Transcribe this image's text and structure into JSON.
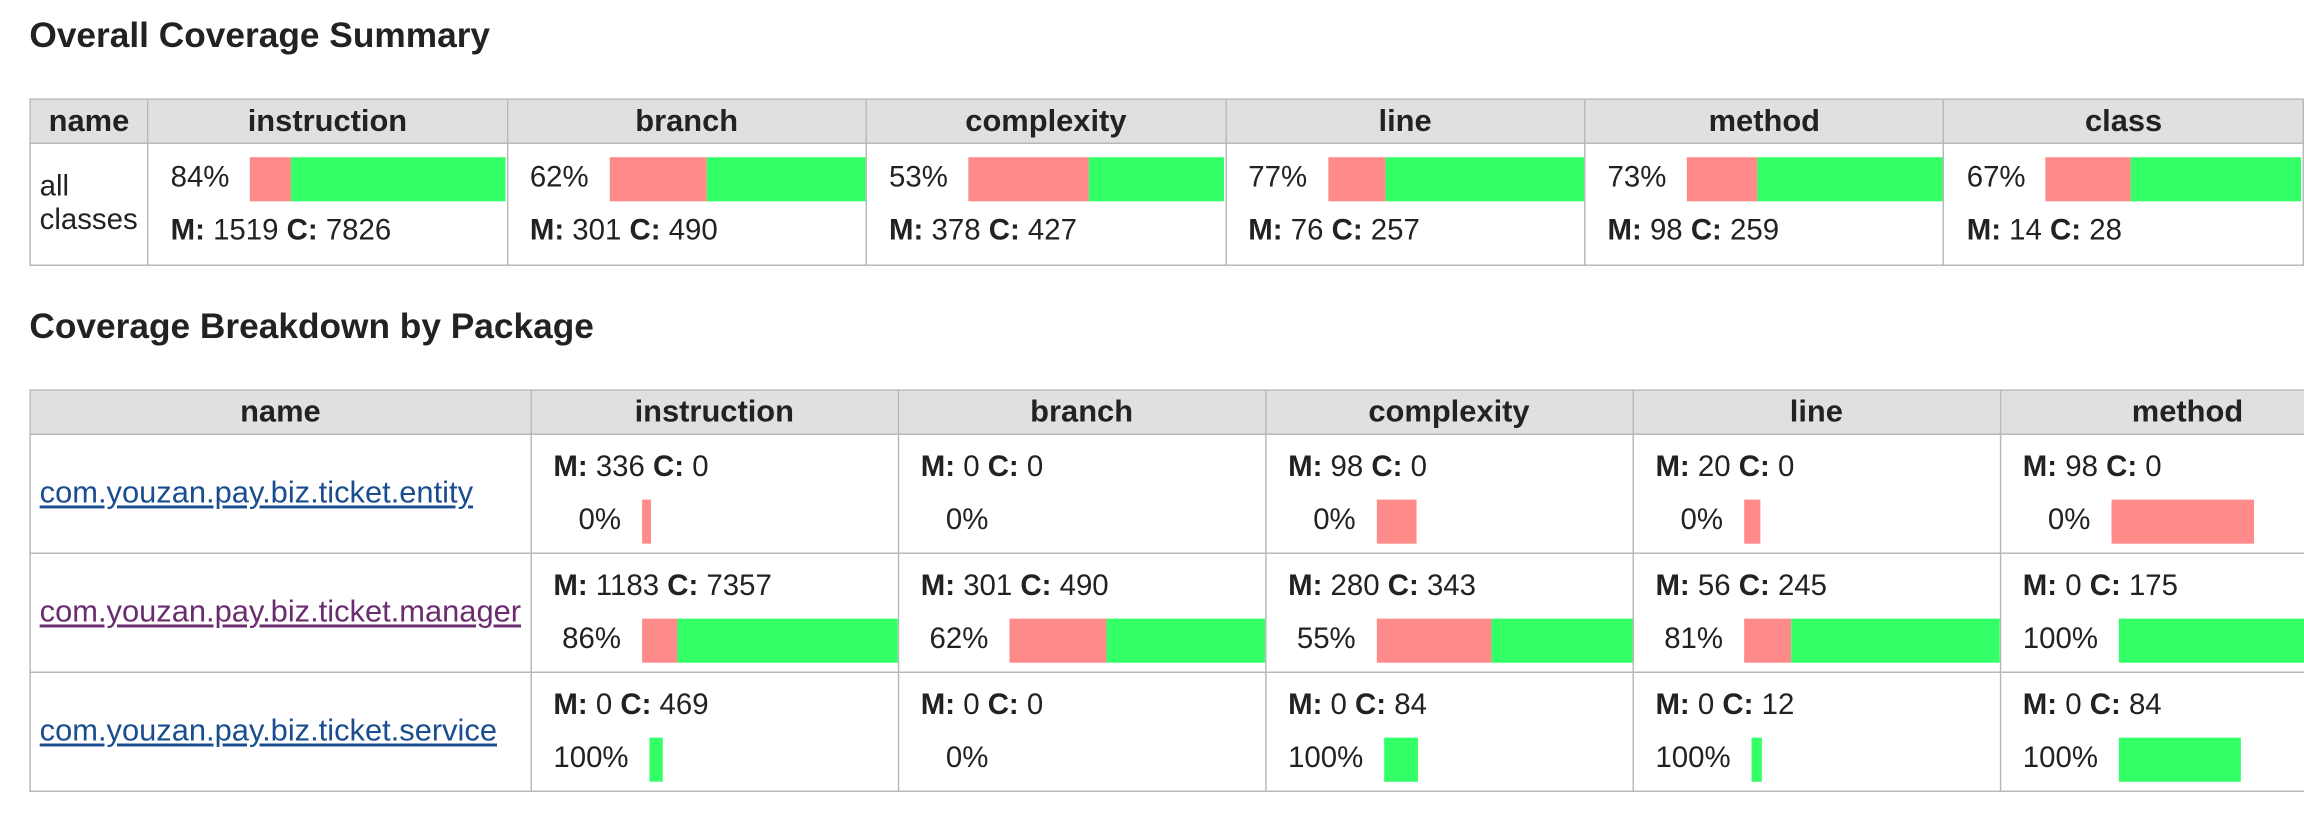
{
  "labels": {
    "missed": "M:",
    "covered": "C:"
  },
  "summary": {
    "title": "Overall Coverage Summary",
    "columns": [
      "name",
      "instruction",
      "branch",
      "complexity",
      "line",
      "method",
      "class"
    ],
    "row": {
      "name": "all classes",
      "cells": [
        {
          "percent": "84%",
          "missed": 1519,
          "covered": 7826
        },
        {
          "percent": "62%",
          "missed": 301,
          "covered": 490
        },
        {
          "percent": "53%",
          "missed": 378,
          "covered": 427
        },
        {
          "percent": "77%",
          "missed": 76,
          "covered": 257
        },
        {
          "percent": "73%",
          "missed": 98,
          "covered": 259
        },
        {
          "percent": "67%",
          "missed": 14,
          "covered": 28
        }
      ]
    }
  },
  "packages": {
    "title": "Coverage Breakdown by Package",
    "columns": [
      "name",
      "instruction",
      "branch",
      "complexity",
      "line",
      "method"
    ],
    "rows": [
      {
        "name": "com.youzan.pay.biz.ticket.entity",
        "visited": false,
        "cells": [
          {
            "missed": 336,
            "covered": 0,
            "percent": "0%"
          },
          {
            "missed": 0,
            "covered": 0,
            "percent": "0%"
          },
          {
            "missed": 98,
            "covered": 0,
            "percent": "0%"
          },
          {
            "missed": 20,
            "covered": 0,
            "percent": "0%"
          },
          {
            "missed": 98,
            "covered": 0,
            "percent": "0%"
          }
        ]
      },
      {
        "name": "com.youzan.pay.biz.ticket.manager",
        "visited": true,
        "cells": [
          {
            "missed": 1183,
            "covered": 7357,
            "percent": "86%"
          },
          {
            "missed": 301,
            "covered": 490,
            "percent": "62%"
          },
          {
            "missed": 280,
            "covered": 343,
            "percent": "55%"
          },
          {
            "missed": 56,
            "covered": 245,
            "percent": "81%"
          },
          {
            "missed": 0,
            "covered": 175,
            "percent": "100%"
          }
        ]
      },
      {
        "name": "com.youzan.pay.biz.ticket.service",
        "visited": false,
        "cells": [
          {
            "missed": 0,
            "covered": 469,
            "percent": "100%"
          },
          {
            "missed": 0,
            "covered": 0,
            "percent": "0%"
          },
          {
            "missed": 0,
            "covered": 84,
            "percent": "100%"
          },
          {
            "missed": 0,
            "covered": 12,
            "percent": "100%"
          },
          {
            "missed": 0,
            "covered": 84,
            "percent": "100%"
          }
        ]
      }
    ]
  }
}
